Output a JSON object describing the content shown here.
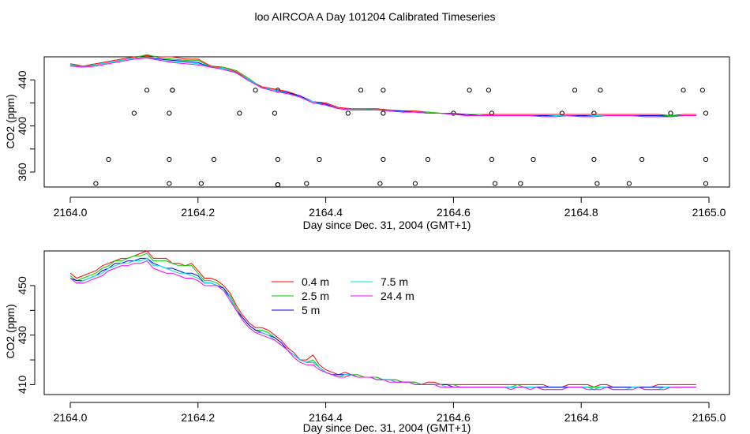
{
  "figure": {
    "title": "loo AIRCOA A  Day 101204  Calibrated Timeseries"
  },
  "series_style": [
    {
      "name": "0.4 m",
      "color": "#ff0000"
    },
    {
      "name": "2.5 m",
      "color": "#00cd00"
    },
    {
      "name": "5 m",
      "color": "#0000ff"
    },
    {
      "name": "7.5 m",
      "color": "#00e5e5"
    },
    {
      "name": "24.4 m",
      "color": "#ff00ff"
    }
  ],
  "chart_data": [
    {
      "type": "line",
      "panel": "top",
      "xlabel": "Day since Dec. 31, 2004 (GMT+1)",
      "ylabel": "CO2 (ppm)",
      "xlim": [
        2164.0,
        2165.0
      ],
      "ylim": [
        347,
        460
      ],
      "xticks": [
        "2164.0",
        "2164.2",
        "2164.4",
        "2164.6",
        "2164.8",
        "2165.0"
      ],
      "yticks": [
        "360",
        "400",
        "440"
      ],
      "legend": "none",
      "grid": false,
      "x": [
        2164.0,
        2164.02,
        2164.04,
        2164.06,
        2164.08,
        2164.1,
        2164.12,
        2164.14,
        2164.16,
        2164.18,
        2164.2,
        2164.22,
        2164.24,
        2164.26,
        2164.28,
        2164.3,
        2164.32,
        2164.34,
        2164.36,
        2164.38,
        2164.4,
        2164.42,
        2164.44,
        2164.46,
        2164.48,
        2164.5,
        2164.52,
        2164.54,
        2164.56,
        2164.58,
        2164.6,
        2164.62,
        2164.64,
        2164.66,
        2164.68,
        2164.7,
        2164.72,
        2164.74,
        2164.76,
        2164.78,
        2164.8,
        2164.82,
        2164.84,
        2164.86,
        2164.88,
        2164.9,
        2164.92,
        2164.94,
        2164.96,
        2164.98
      ],
      "series": [
        {
          "name": "0.4 m",
          "color": "#ff0000",
          "values": [
            454,
            452,
            454,
            456,
            458,
            460,
            461,
            460,
            460,
            458,
            458,
            452,
            451,
            447,
            440,
            434,
            432,
            430,
            426,
            421,
            420,
            416,
            415,
            415,
            415,
            414,
            413,
            413,
            412,
            411,
            411,
            410,
            410,
            410,
            410,
            410,
            410,
            410,
            410,
            410,
            410,
            410,
            410,
            410,
            410,
            410,
            410,
            409,
            410,
            410
          ]
        },
        {
          "name": "2.5 m",
          "color": "#00cd00",
          "values": [
            453,
            452,
            453,
            455,
            457,
            459,
            462,
            459,
            458,
            457,
            457,
            451,
            451,
            448,
            441,
            433,
            431,
            429,
            425,
            420,
            419,
            415,
            415,
            415,
            414,
            414,
            413,
            412,
            412,
            411,
            410,
            410,
            410,
            409,
            409,
            409,
            409,
            409,
            409,
            409,
            409,
            409,
            409,
            409,
            409,
            409,
            409,
            409,
            409,
            409
          ]
        },
        {
          "name": "5 m",
          "color": "#0000ff",
          "values": [
            453,
            451,
            453,
            455,
            457,
            459,
            459,
            458,
            457,
            456,
            455,
            451,
            450,
            446,
            440,
            433,
            431,
            429,
            426,
            421,
            419,
            415,
            414,
            414,
            414,
            413,
            413,
            412,
            411,
            411,
            410,
            410,
            409,
            409,
            409,
            409,
            409,
            409,
            409,
            409,
            409,
            409,
            409,
            409,
            409,
            409,
            409,
            408,
            409,
            409
          ]
        },
        {
          "name": "7.5 m",
          "color": "#00e5e5",
          "values": [
            453,
            451,
            453,
            455,
            457,
            459,
            459,
            457,
            456,
            455,
            454,
            451,
            450,
            446,
            440,
            433,
            431,
            428,
            425,
            421,
            418,
            415,
            414,
            414,
            414,
            413,
            412,
            412,
            411,
            411,
            410,
            409,
            409,
            409,
            409,
            409,
            409,
            408,
            409,
            409,
            408,
            409,
            409,
            409,
            409,
            408,
            408,
            408,
            409,
            409
          ]
        },
        {
          "name": "24.4 m",
          "color": "#ff00ff",
          "values": [
            452,
            451,
            452,
            454,
            456,
            458,
            459,
            457,
            455,
            454,
            453,
            451,
            449,
            446,
            439,
            433,
            430,
            428,
            425,
            420,
            418,
            415,
            414,
            414,
            414,
            413,
            412,
            412,
            411,
            411,
            410,
            409,
            409,
            409,
            409,
            409,
            409,
            408,
            408,
            409,
            408,
            408,
            409,
            409,
            409,
            408,
            408,
            408,
            409,
            409
          ]
        }
      ],
      "markers": {
        "symbol": "open-circle",
        "x": [
          2164.04,
          2164.06,
          2164.1,
          2164.12,
          2164.155,
          2164.155,
          2164.155,
          2164.16,
          2164.16,
          2164.205,
          2164.225,
          2164.265,
          2164.29,
          2164.32,
          2164.325,
          2164.325,
          2164.325,
          2164.325,
          2164.37,
          2164.39,
          2164.435,
          2164.455,
          2164.485,
          2164.49,
          2164.49,
          2164.49,
          2164.54,
          2164.56,
          2164.6,
          2164.625,
          2164.655,
          2164.66,
          2164.66,
          2164.665,
          2164.705,
          2164.725,
          2164.77,
          2164.79,
          2164.82,
          2164.82,
          2164.825,
          2164.83,
          2164.875,
          2164.895,
          2164.94,
          2164.96,
          2164.99,
          2164.995,
          2164.995,
          2164.995
        ],
        "y": [
          350,
          371,
          411,
          431,
          350,
          371,
          411,
          431,
          431,
          350,
          371,
          411,
          431,
          411,
          431,
          371,
          349,
          349,
          350,
          371,
          411,
          431,
          350,
          371,
          411,
          431,
          350,
          371,
          411,
          431,
          431,
          411,
          371,
          350,
          350,
          371,
          411,
          431,
          411,
          371,
          350,
          431,
          350,
          371,
          411,
          431,
          431,
          411,
          371,
          350
        ]
      }
    },
    {
      "type": "line",
      "panel": "bottom",
      "xlabel": "Day since Dec. 31, 2004 (GMT+1)",
      "ylabel": "CO2 (ppm)",
      "xlim": [
        2164.0,
        2165.0
      ],
      "ylim": [
        406,
        464
      ],
      "xticks": [
        "2164.0",
        "2164.2",
        "2164.4",
        "2164.6",
        "2164.8",
        "2165.0"
      ],
      "yticks": [
        "410",
        "430",
        "450"
      ],
      "legend": "top-left",
      "grid": false,
      "x": [
        2164.0,
        2164.01,
        2164.02,
        2164.03,
        2164.04,
        2164.05,
        2164.06,
        2164.07,
        2164.08,
        2164.09,
        2164.1,
        2164.11,
        2164.12,
        2164.13,
        2164.14,
        2164.15,
        2164.16,
        2164.17,
        2164.18,
        2164.19,
        2164.2,
        2164.21,
        2164.22,
        2164.23,
        2164.24,
        2164.25,
        2164.26,
        2164.27,
        2164.28,
        2164.29,
        2164.3,
        2164.31,
        2164.32,
        2164.33,
        2164.34,
        2164.35,
        2164.36,
        2164.37,
        2164.38,
        2164.39,
        2164.4,
        2164.41,
        2164.42,
        2164.43,
        2164.44,
        2164.45,
        2164.46,
        2164.47,
        2164.48,
        2164.49,
        2164.5,
        2164.51,
        2164.52,
        2164.53,
        2164.54,
        2164.55,
        2164.56,
        2164.57,
        2164.58,
        2164.59,
        2164.6,
        2164.61,
        2164.62,
        2164.63,
        2164.64,
        2164.65,
        2164.66,
        2164.67,
        2164.68,
        2164.69,
        2164.7,
        2164.71,
        2164.72,
        2164.73,
        2164.74,
        2164.75,
        2164.76,
        2164.77,
        2164.78,
        2164.79,
        2164.8,
        2164.81,
        2164.82,
        2164.83,
        2164.84,
        2164.85,
        2164.86,
        2164.87,
        2164.88,
        2164.89,
        2164.9,
        2164.91,
        2164.92,
        2164.93,
        2164.94,
        2164.95,
        2164.96,
        2164.97,
        2164.98
      ],
      "series": [
        {
          "name": "0.4 m",
          "color": "#ff0000",
          "values": [
            455,
            453,
            454,
            455,
            456,
            458,
            459,
            460,
            461,
            461,
            462,
            463,
            464,
            461,
            461,
            461,
            459,
            459,
            458,
            459,
            456,
            453,
            453,
            452,
            450,
            447,
            442,
            438,
            435,
            433,
            433,
            432,
            430,
            428,
            425,
            423,
            420,
            420,
            422,
            418,
            416,
            415,
            414,
            415,
            414,
            414,
            413,
            413,
            413,
            412,
            412,
            412,
            411,
            411,
            411,
            410,
            411,
            411,
            410,
            410,
            410,
            410,
            410,
            410,
            410,
            410,
            410,
            410,
            410,
            410,
            410,
            410,
            410,
            410,
            410,
            409,
            409,
            409,
            410,
            410,
            410,
            410,
            409,
            410,
            410,
            409,
            409,
            409,
            409,
            409,
            409,
            409,
            410,
            410,
            410,
            410,
            410,
            410,
            410
          ]
        },
        {
          "name": "2.5 m",
          "color": "#00cd00",
          "values": [
            454,
            452,
            453,
            454,
            455,
            457,
            458,
            460,
            460,
            461,
            462,
            462,
            463,
            460,
            460,
            460,
            459,
            458,
            458,
            458,
            455,
            452,
            452,
            451,
            449,
            446,
            441,
            437,
            434,
            432,
            432,
            431,
            429,
            427,
            424,
            422,
            420,
            419,
            420,
            417,
            415,
            414,
            414,
            414,
            414,
            414,
            413,
            413,
            413,
            412,
            412,
            412,
            411,
            411,
            411,
            410,
            410,
            410,
            410,
            410,
            410,
            409,
            409,
            409,
            409,
            409,
            409,
            409,
            409,
            409,
            410,
            409,
            409,
            409,
            409,
            409,
            409,
            409,
            409,
            409,
            409,
            409,
            409,
            409,
            409,
            409,
            409,
            409,
            409,
            409,
            409,
            409,
            409,
            409,
            409,
            409,
            409,
            409,
            409
          ]
        },
        {
          "name": "5 m",
          "color": "#0000ff",
          "values": [
            453,
            452,
            452,
            453,
            454,
            456,
            457,
            459,
            459,
            460,
            460,
            461,
            461,
            459,
            458,
            457,
            457,
            456,
            455,
            455,
            454,
            451,
            451,
            450,
            449,
            445,
            440,
            437,
            434,
            432,
            431,
            430,
            429,
            427,
            424,
            422,
            420,
            419,
            419,
            417,
            415,
            414,
            414,
            414,
            414,
            413,
            413,
            413,
            412,
            412,
            412,
            411,
            411,
            411,
            410,
            410,
            410,
            410,
            410,
            410,
            409,
            409,
            409,
            409,
            409,
            409,
            409,
            409,
            409,
            409,
            409,
            409,
            409,
            409,
            409,
            409,
            409,
            409,
            409,
            409,
            409,
            409,
            408,
            409,
            409,
            409,
            409,
            409,
            409,
            409,
            409,
            409,
            409,
            409,
            409,
            409,
            409,
            409,
            409
          ]
        },
        {
          "name": "7.5 m",
          "color": "#00e5e5",
          "values": [
            453,
            451,
            452,
            453,
            454,
            455,
            457,
            458,
            459,
            459,
            460,
            460,
            461,
            458,
            458,
            457,
            456,
            455,
            455,
            454,
            453,
            451,
            451,
            450,
            448,
            445,
            440,
            436,
            433,
            431,
            431,
            430,
            428,
            426,
            424,
            422,
            420,
            419,
            419,
            417,
            415,
            414,
            413,
            414,
            414,
            413,
            413,
            413,
            412,
            412,
            412,
            411,
            411,
            411,
            410,
            410,
            410,
            410,
            410,
            409,
            409,
            409,
            409,
            409,
            409,
            409,
            409,
            409,
            409,
            409,
            409,
            409,
            409,
            409,
            408,
            408,
            408,
            408,
            409,
            409,
            409,
            409,
            408,
            409,
            409,
            408,
            408,
            408,
            409,
            409,
            408,
            408,
            408,
            409,
            409,
            409,
            409,
            409,
            409
          ]
        },
        {
          "name": "24.4 m",
          "color": "#ff00ff",
          "values": [
            453,
            451,
            451,
            452,
            453,
            454,
            456,
            457,
            458,
            458,
            459,
            459,
            460,
            457,
            456,
            455,
            455,
            454,
            453,
            453,
            452,
            450,
            450,
            450,
            448,
            444,
            440,
            436,
            433,
            431,
            430,
            429,
            428,
            426,
            424,
            421,
            419,
            418,
            418,
            416,
            415,
            414,
            413,
            413,
            414,
            413,
            413,
            413,
            412,
            412,
            411,
            411,
            411,
            411,
            410,
            410,
            410,
            410,
            409,
            409,
            409,
            409,
            409,
            409,
            409,
            409,
            409,
            409,
            409,
            408,
            409,
            409,
            408,
            409,
            408,
            408,
            408,
            408,
            409,
            409,
            409,
            408,
            408,
            408,
            409,
            408,
            408,
            408,
            408,
            409,
            408,
            408,
            408,
            408,
            409,
            409,
            409,
            409,
            409
          ]
        }
      ]
    }
  ]
}
